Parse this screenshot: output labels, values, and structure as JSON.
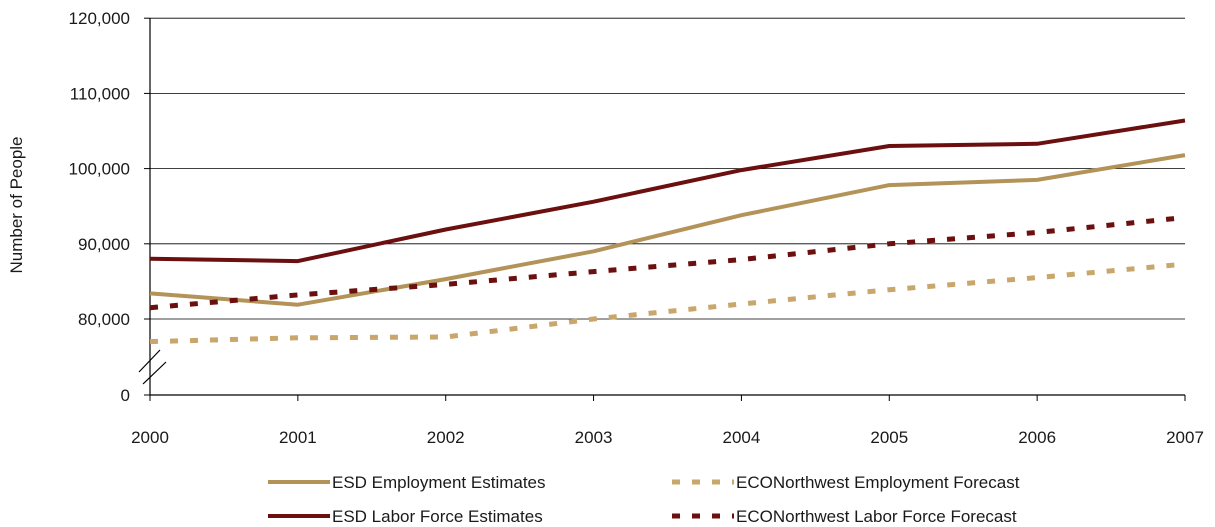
{
  "chart_data": {
    "type": "line",
    "xlabel": "",
    "ylabel": "Number of People",
    "categories": [
      "2000",
      "2001",
      "2002",
      "2003",
      "2004",
      "2005",
      "2006",
      "2007"
    ],
    "y_tick_labels": [
      "120,000",
      "110,000",
      "100,000",
      "90,000",
      "80,000",
      "0"
    ],
    "axis_break": "between 0 and 80,000",
    "grid": "horizontal",
    "legend_position": "bottom",
    "series": [
      {
        "name": "ESD Employment Estimates",
        "style": "solid",
        "color": "#b39358",
        "values": [
          83400,
          81900,
          85300,
          89000,
          93800,
          97800,
          98500,
          101800
        ]
      },
      {
        "name": "ESD Labor Force Estimates",
        "style": "solid",
        "color": "#6b0f0f",
        "values": [
          88000,
          87700,
          91900,
          95600,
          99800,
          103000,
          103300,
          106400
        ]
      },
      {
        "name": "ECONorthwest Employment Forecast",
        "style": "dashed",
        "color": "#c9a66b",
        "values": [
          77000,
          77500,
          77600,
          80000,
          82000,
          83900,
          85500,
          87300
        ]
      },
      {
        "name": "ECONorthwest Labor Force Forecast",
        "style": "dashed",
        "color": "#6b0f0f",
        "values": [
          81500,
          83200,
          84600,
          86300,
          87900,
          90000,
          91500,
          93500
        ]
      }
    ]
  }
}
